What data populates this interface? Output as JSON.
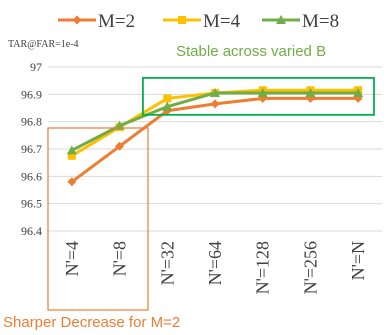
{
  "chart_data": {
    "type": "line",
    "title": "",
    "xlabel": "",
    "ylabel": "TAR@FAR=1e-4",
    "categories": [
      "N'=4",
      "N'=8",
      "N'=32",
      "N'=64",
      "N'=128",
      "N'=256",
      "N'=N"
    ],
    "yticks": [
      "96.4",
      "96.5",
      "96.6",
      "96.7",
      "96.8",
      "96.9",
      "97"
    ],
    "ylim": [
      96.4,
      97.0
    ],
    "grid": "horizontal",
    "legend_position": "top",
    "series": [
      {
        "name": "M=2",
        "color": "#ED7D31",
        "marker": "diamond",
        "values": [
          96.58,
          96.71,
          96.84,
          96.865,
          96.885,
          96.885,
          96.885
        ]
      },
      {
        "name": "M=4",
        "color": "#FFC000",
        "marker": "square",
        "values": [
          96.675,
          96.78,
          96.885,
          96.905,
          96.915,
          96.915,
          96.915
        ]
      },
      {
        "name": "M=8",
        "color": "#70AD47",
        "marker": "triangle",
        "values": [
          96.695,
          96.785,
          96.855,
          96.905,
          96.905,
          96.905,
          96.905
        ]
      }
    ],
    "annotations": [
      {
        "text": "Stable across varied B",
        "color": "#70AD47",
        "box_color": "#00B050",
        "box_categories": [
          "N'=32",
          "N'=N"
        ],
        "box_yrange": [
          96.825,
          96.96
        ]
      },
      {
        "text": "Sharper Decrease for M=2",
        "color": "#ED7D31",
        "box_color": "#ED7D31",
        "box_categories": [
          "N'=4",
          "N'=8"
        ]
      }
    ]
  }
}
